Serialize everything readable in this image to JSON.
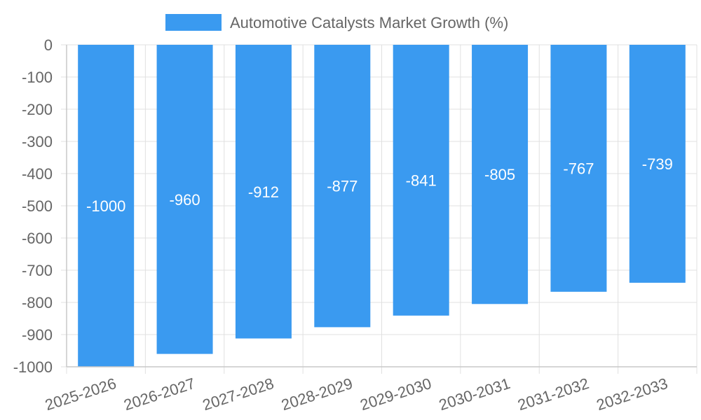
{
  "chart_data": {
    "type": "bar",
    "title": "",
    "xlabel": "",
    "ylabel": "",
    "categories": [
      "2025-2026",
      "2026-2027",
      "2027-2028",
      "2028-2029",
      "2029-2030",
      "2030-2031",
      "2031-2032",
      "2032-2033"
    ],
    "series": [
      {
        "name": "Automotive Catalysts Market Growth (%)",
        "values": [
          -1000,
          -960,
          -912,
          -877,
          -841,
          -805,
          -767,
          -739
        ],
        "color": "#3a9af0"
      }
    ],
    "ylim": [
      -1000,
      0
    ],
    "yticks": [
      0,
      -100,
      -200,
      -300,
      -400,
      -500,
      -600,
      -700,
      -800,
      -900,
      -1000
    ],
    "grid": true,
    "legend_position": "top-center",
    "data_labels": true
  }
}
